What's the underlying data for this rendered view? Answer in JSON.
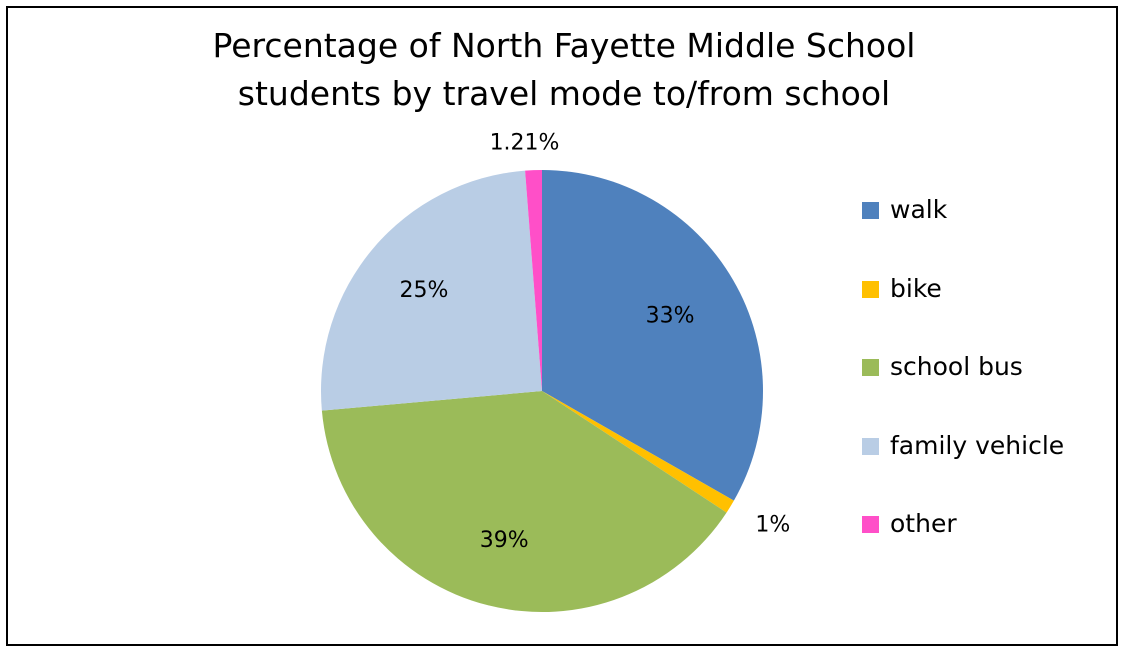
{
  "chart_data": {
    "type": "pie",
    "title_lines": [
      "Percentage of North Fayette Middle School",
      "students by travel mode to/from school"
    ],
    "slices": [
      {
        "name": "walk",
        "value": 33,
        "label": "33%",
        "color": "#4F81BD"
      },
      {
        "name": "bike",
        "value": 1,
        "label": "1%",
        "color": "#FFC000"
      },
      {
        "name": "school bus",
        "value": 39,
        "label": "39%",
        "color": "#9BBB59"
      },
      {
        "name": "family vehicle",
        "value": 25,
        "label": "25%",
        "color": "#B9CDE5"
      },
      {
        "name": "other",
        "value": 1.21,
        "label": "1.21%",
        "color": "#FF4FC8"
      }
    ],
    "legend_position": "right"
  }
}
